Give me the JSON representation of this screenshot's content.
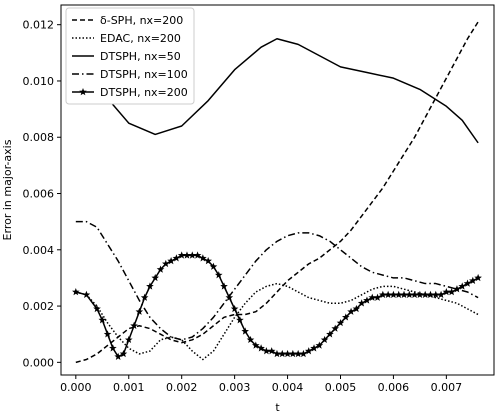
{
  "chart_data": {
    "type": "line",
    "xlabel": "t",
    "ylabel": "Error in major-axis",
    "xlim": [
      -0.00028,
      0.0079
    ],
    "ylim": [
      -0.00045,
      0.0127
    ],
    "grid": false,
    "legend_position": "top-left",
    "x_ticks": [
      0.0,
      0.001,
      0.002,
      0.003,
      0.004,
      0.005,
      0.006,
      0.007
    ],
    "x_tick_labels": [
      "0.000",
      "0.001",
      "0.002",
      "0.003",
      "0.004",
      "0.005",
      "0.006",
      "0.007"
    ],
    "y_ticks": [
      0.0,
      0.002,
      0.004,
      0.006,
      0.008,
      0.01,
      0.012
    ],
    "y_tick_labels": [
      "0.000",
      "0.002",
      "0.004",
      "0.006",
      "0.008",
      "0.010",
      "0.012"
    ],
    "series": [
      {
        "name": "δ-SPH, nx=200",
        "style": "dashed",
        "color": "#000000",
        "x": [
          0.0,
          0.0002,
          0.0004,
          0.0006,
          0.0008,
          0.001,
          0.0012,
          0.0014,
          0.0016,
          0.0018,
          0.002,
          0.0022,
          0.0024,
          0.0026,
          0.0028,
          0.003,
          0.0032,
          0.0034,
          0.0036,
          0.0038,
          0.004,
          0.0042,
          0.0044,
          0.0046,
          0.0048,
          0.005,
          0.0052,
          0.0054,
          0.0056,
          0.0058,
          0.006,
          0.0062,
          0.0064,
          0.0066,
          0.0068,
          0.007,
          0.0072,
          0.0074,
          0.0076
        ],
        "y": [
          0.0,
          0.0001,
          0.0003,
          0.0006,
          0.0009,
          0.0012,
          0.0013,
          0.0012,
          0.001,
          0.0008,
          0.0007,
          0.0008,
          0.001,
          0.0013,
          0.0016,
          0.0017,
          0.0017,
          0.0018,
          0.0021,
          0.0025,
          0.0029,
          0.0032,
          0.0035,
          0.0037,
          0.004,
          0.0043,
          0.0047,
          0.0052,
          0.0057,
          0.0062,
          0.0068,
          0.0074,
          0.008,
          0.0087,
          0.0094,
          0.0101,
          0.0108,
          0.0115,
          0.0121
        ]
      },
      {
        "name": "EDAC, nx=200",
        "style": "dotted",
        "color": "#000000",
        "x": [
          0.0,
          0.0002,
          0.0004,
          0.0006,
          0.0008,
          0.001,
          0.0012,
          0.0014,
          0.0016,
          0.0018,
          0.002,
          0.0022,
          0.0024,
          0.0026,
          0.0028,
          0.003,
          0.0032,
          0.0034,
          0.0036,
          0.0038,
          0.004,
          0.0042,
          0.0044,
          0.0046,
          0.0048,
          0.005,
          0.0052,
          0.0054,
          0.0056,
          0.0058,
          0.006,
          0.0062,
          0.0064,
          0.0066,
          0.0068,
          0.007,
          0.0072,
          0.0074,
          0.0076
        ],
        "y": [
          0.0025,
          0.0024,
          0.002,
          0.0014,
          0.0009,
          0.0005,
          0.0003,
          0.0004,
          0.0008,
          0.0009,
          0.0008,
          0.0004,
          0.0001,
          0.0004,
          0.001,
          0.0016,
          0.0021,
          0.0025,
          0.0027,
          0.0028,
          0.0027,
          0.0025,
          0.0023,
          0.0022,
          0.0021,
          0.0021,
          0.0022,
          0.0024,
          0.0026,
          0.0027,
          0.0027,
          0.0026,
          0.0025,
          0.0024,
          0.0023,
          0.0022,
          0.0021,
          0.0019,
          0.0017
        ]
      },
      {
        "name": "DTSPH, nx=50",
        "style": "solid",
        "color": "#000000",
        "x": [
          0.0,
          0.0005,
          0.001,
          0.0015,
          0.002,
          0.0025,
          0.003,
          0.0035,
          0.0038,
          0.0042,
          0.0046,
          0.005,
          0.0055,
          0.006,
          0.0065,
          0.007,
          0.0073,
          0.0076
        ],
        "y": [
          0.0096,
          0.0096,
          0.0085,
          0.0081,
          0.0084,
          0.0093,
          0.0104,
          0.0112,
          0.0115,
          0.0113,
          0.0109,
          0.0105,
          0.0103,
          0.0101,
          0.0097,
          0.0091,
          0.0086,
          0.0078
        ]
      },
      {
        "name": "DTSPH, nx=100",
        "style": "dashdot",
        "color": "#000000",
        "x": [
          0.0,
          0.0002,
          0.0004,
          0.0006,
          0.0008,
          0.001,
          0.0012,
          0.0014,
          0.0016,
          0.0018,
          0.002,
          0.0022,
          0.0024,
          0.0026,
          0.0028,
          0.003,
          0.0032,
          0.0034,
          0.0036,
          0.0038,
          0.004,
          0.0042,
          0.0044,
          0.0046,
          0.0048,
          0.005,
          0.0052,
          0.0054,
          0.0056,
          0.0058,
          0.006,
          0.0062,
          0.0064,
          0.0066,
          0.0068,
          0.007,
          0.0072,
          0.0074,
          0.0076
        ],
        "y": [
          0.005,
          0.005,
          0.0048,
          0.0042,
          0.0036,
          0.0029,
          0.0022,
          0.0016,
          0.0012,
          0.0009,
          0.0008,
          0.0009,
          0.0012,
          0.0016,
          0.0021,
          0.0026,
          0.0031,
          0.0036,
          0.004,
          0.0043,
          0.0045,
          0.0046,
          0.0046,
          0.0045,
          0.0043,
          0.004,
          0.0037,
          0.0034,
          0.0032,
          0.0031,
          0.003,
          0.003,
          0.0029,
          0.0028,
          0.0028,
          0.0027,
          0.0026,
          0.0025,
          0.0023
        ]
      },
      {
        "name": "DTSPH, nx=200",
        "style": "solid-star",
        "color": "#000000",
        "x": [
          0.0,
          0.0002,
          0.0004,
          0.0005,
          0.0006,
          0.0007,
          0.0008,
          0.0009,
          0.001,
          0.0011,
          0.0012,
          0.0013,
          0.0014,
          0.0015,
          0.0016,
          0.0017,
          0.0018,
          0.0019,
          0.002,
          0.0021,
          0.0022,
          0.0023,
          0.0024,
          0.0025,
          0.0026,
          0.0027,
          0.0028,
          0.0029,
          0.003,
          0.0031,
          0.0032,
          0.0033,
          0.0034,
          0.0035,
          0.0036,
          0.0037,
          0.0038,
          0.0039,
          0.004,
          0.0041,
          0.0042,
          0.0043,
          0.0044,
          0.0045,
          0.0046,
          0.0047,
          0.0048,
          0.0049,
          0.005,
          0.0051,
          0.0052,
          0.0053,
          0.0054,
          0.0055,
          0.0056,
          0.0057,
          0.0058,
          0.0059,
          0.006,
          0.0061,
          0.0062,
          0.0063,
          0.0064,
          0.0065,
          0.0066,
          0.0067,
          0.0068,
          0.0069,
          0.007,
          0.0071,
          0.0072,
          0.0073,
          0.0074,
          0.0075,
          0.0076
        ],
        "y": [
          0.0025,
          0.0024,
          0.0019,
          0.0015,
          0.001,
          0.0005,
          0.0002,
          0.0003,
          0.0008,
          0.0013,
          0.0018,
          0.0023,
          0.0027,
          0.003,
          0.0033,
          0.0035,
          0.0036,
          0.0037,
          0.0038,
          0.0038,
          0.0038,
          0.0038,
          0.0037,
          0.0036,
          0.0034,
          0.0031,
          0.0027,
          0.0023,
          0.0019,
          0.0015,
          0.0011,
          0.0008,
          0.0006,
          0.0005,
          0.0004,
          0.0004,
          0.0003,
          0.0003,
          0.0003,
          0.0003,
          0.0003,
          0.0003,
          0.0004,
          0.0005,
          0.0006,
          0.0008,
          0.001,
          0.0012,
          0.0014,
          0.0016,
          0.0018,
          0.0019,
          0.0021,
          0.0022,
          0.0023,
          0.0023,
          0.0024,
          0.0024,
          0.0024,
          0.0024,
          0.0024,
          0.0024,
          0.0024,
          0.0024,
          0.0024,
          0.0024,
          0.0024,
          0.0024,
          0.0025,
          0.0025,
          0.0026,
          0.0027,
          0.0028,
          0.0029,
          0.003
        ]
      }
    ]
  }
}
